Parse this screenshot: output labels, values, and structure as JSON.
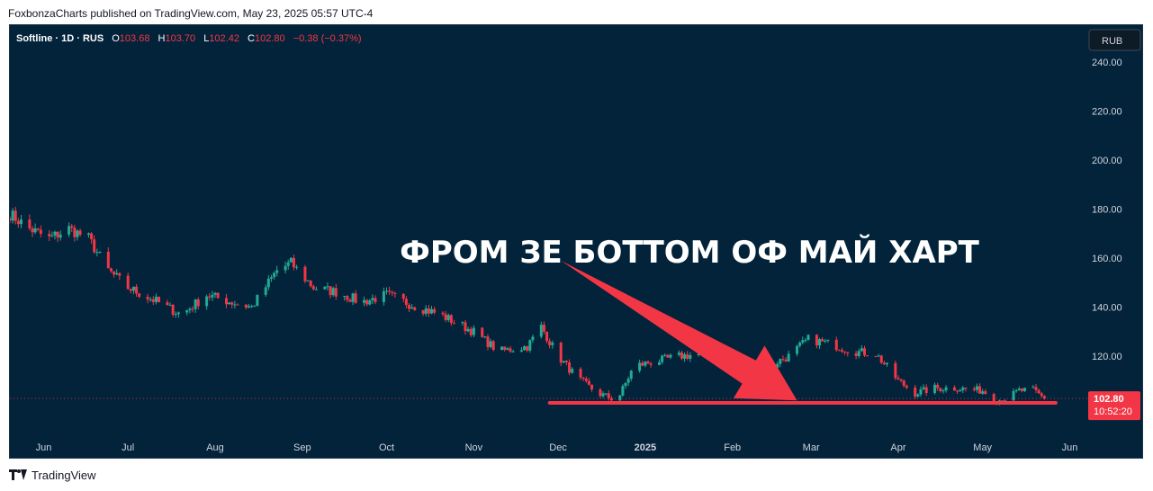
{
  "header": {
    "publisher_line": "FoxbonzaCharts published on TradingView.com, May 23, 2025 05:57 UTC-4"
  },
  "legend": {
    "symbol": "Softline · 1D · RUS",
    "o_label": "O",
    "o_value": "103.68",
    "h_label": "H",
    "h_value": "103.70",
    "l_label": "L",
    "l_value": "102.42",
    "c_label": "C",
    "c_value": "102.80",
    "change": "−0.38 (−0.37%)"
  },
  "currency_button": "RUB",
  "price_tag": {
    "value": "102.80",
    "countdown": "10:52:20"
  },
  "annotation": {
    "text": "ФРОМ ЗЕ БОТТОМ ОФ МАЙ ХАРТ"
  },
  "footer": {
    "brand": "TradingView"
  },
  "colors": {
    "background": "#03233a",
    "up": "#22ab94",
    "down": "#f23645",
    "annotation_arrow": "#f23645",
    "text_axis": "#d1d4dc"
  },
  "chart_data": {
    "type": "candlestick",
    "symbol": "Softline",
    "interval": "1D",
    "ylim": [
      90,
      255
    ],
    "y_ticks": [
      120,
      140,
      160,
      180,
      200,
      220,
      240
    ],
    "y_tick_labels": [
      "120.00",
      "140.00",
      "160.00",
      "180.00",
      "200.00",
      "220.00",
      "240.00"
    ],
    "x_range": [
      "2024-05-20",
      "2025-06-05"
    ],
    "x_ticks": [
      {
        "date": "2024-06-01",
        "label": "Jun"
      },
      {
        "date": "2024-07-01",
        "label": "Jul"
      },
      {
        "date": "2024-08-01",
        "label": "Aug"
      },
      {
        "date": "2024-09-01",
        "label": "Sep"
      },
      {
        "date": "2024-10-01",
        "label": "Oct"
      },
      {
        "date": "2024-11-01",
        "label": "Nov"
      },
      {
        "date": "2024-12-01",
        "label": "Dec"
      },
      {
        "date": "2025-01-01",
        "label": "2025"
      },
      {
        "date": "2025-02-01",
        "label": "Feb"
      },
      {
        "date": "2025-03-01",
        "label": "Mar"
      },
      {
        "date": "2025-04-01",
        "label": "Apr"
      },
      {
        "date": "2025-05-01",
        "label": "May"
      },
      {
        "date": "2025-06-01",
        "label": "Jun"
      }
    ],
    "close_anchors": [
      [
        "2024-05-20",
        178
      ],
      [
        "2024-05-27",
        172
      ],
      [
        "2024-06-03",
        168
      ],
      [
        "2024-06-10",
        172
      ],
      [
        "2024-06-17",
        168
      ],
      [
        "2024-06-24",
        155
      ],
      [
        "2024-07-01",
        148
      ],
      [
        "2024-07-10",
        143
      ],
      [
        "2024-07-20",
        137
      ],
      [
        "2024-07-29",
        145
      ],
      [
        "2024-08-07",
        142
      ],
      [
        "2024-08-14",
        140
      ],
      [
        "2024-08-23",
        155
      ],
      [
        "2024-08-28",
        158
      ],
      [
        "2024-09-05",
        148
      ],
      [
        "2024-09-14",
        146
      ],
      [
        "2024-09-22",
        142
      ],
      [
        "2024-10-01",
        145
      ],
      [
        "2024-10-10",
        141
      ],
      [
        "2024-10-20",
        137
      ],
      [
        "2024-11-01",
        130
      ],
      [
        "2024-11-10",
        122
      ],
      [
        "2024-11-20",
        124
      ],
      [
        "2024-11-25",
        132
      ],
      [
        "2024-12-01",
        120
      ],
      [
        "2024-12-08",
        111
      ],
      [
        "2024-12-15",
        105
      ],
      [
        "2024-12-22",
        102
      ],
      [
        "2024-12-28",
        116
      ],
      [
        "2025-01-05",
        118
      ],
      [
        "2025-01-13",
        120
      ],
      [
        "2025-01-22",
        121
      ],
      [
        "2025-02-01",
        116
      ],
      [
        "2025-02-12",
        115
      ],
      [
        "2025-02-21",
        120
      ],
      [
        "2025-02-28",
        127
      ],
      [
        "2025-03-08",
        125
      ],
      [
        "2025-03-16",
        122
      ],
      [
        "2025-03-24",
        121
      ],
      [
        "2025-04-01",
        110
      ],
      [
        "2025-04-07",
        105
      ],
      [
        "2025-04-14",
        107
      ],
      [
        "2025-04-22",
        107
      ],
      [
        "2025-05-01",
        106
      ],
      [
        "2025-05-06",
        102
      ],
      [
        "2025-05-10",
        103
      ],
      [
        "2025-05-14",
        106
      ],
      [
        "2025-05-19",
        106
      ],
      [
        "2025-05-23",
        102.8
      ]
    ],
    "last_close": 102.8,
    "support_line": {
      "start_date": "2024-11-28",
      "end_date": "2025-05-27",
      "level": 101
    },
    "arrow": {
      "tail_date": "2024-12-02",
      "tail_price": 159,
      "head_date": "2025-02-24",
      "head_price": 102
    }
  }
}
